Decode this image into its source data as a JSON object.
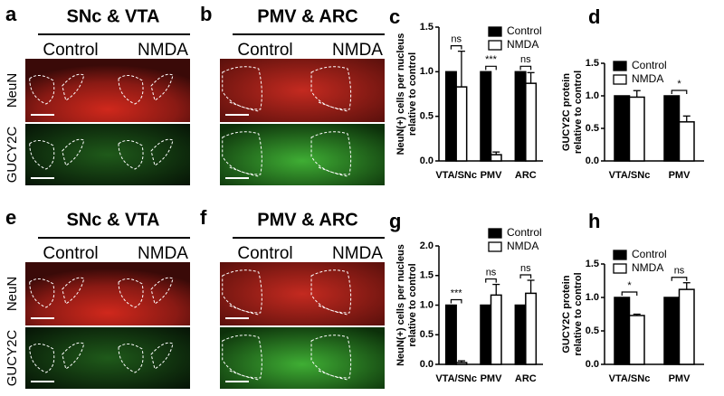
{
  "image_panels": [
    {
      "letter": "a",
      "title": "SNc & VTA",
      "conditions": [
        "Control",
        "NMDA"
      ],
      "rows": [
        "NeuN",
        "GUCY2C"
      ]
    },
    {
      "letter": "b",
      "title": "PMV & ARC",
      "conditions": [
        "Control",
        "NMDA"
      ]
    },
    {
      "letter": "e",
      "title": "SNc & VTA",
      "conditions": [
        "Control",
        "NMDA"
      ],
      "rows": [
        "NeuN",
        "GUCY2C"
      ]
    },
    {
      "letter": "f",
      "title": "PMV & ARC",
      "conditions": [
        "Control",
        "NMDA"
      ]
    }
  ],
  "chart_data": [
    {
      "type": "bar",
      "letter": "c",
      "ylabel": [
        "NeuN(+) cells per nucleus",
        "relative to control"
      ],
      "categories": [
        "VTA/SNc",
        "PMV",
        "ARC"
      ],
      "series": [
        {
          "name": "Control",
          "color": "#000000",
          "values": [
            1,
            1,
            1
          ]
        },
        {
          "name": "NMDA",
          "color": "#ffffff",
          "values": [
            0.83,
            0.07,
            0.87
          ],
          "errors": [
            0.4,
            0.03,
            0.12
          ]
        }
      ],
      "significance": [
        "ns",
        "***",
        "ns"
      ],
      "ylim": [
        0,
        1.5
      ],
      "yticks": [
        {
          "value": 0,
          "label": "0.0"
        },
        0.5,
        {
          "value": 1,
          "label": "1.0"
        },
        1.5
      ]
    },
    {
      "type": "bar",
      "letter": "d",
      "ylabel": [
        "GUCY2C protein",
        "relative to control"
      ],
      "categories": [
        "VTA/SNc",
        "PMV"
      ],
      "series": [
        {
          "name": "Control",
          "color": "#000000",
          "values": [
            1,
            1
          ]
        },
        {
          "name": "NMDA",
          "color": "#ffffff",
          "values": [
            0.98,
            0.6
          ],
          "errors": [
            0.1,
            0.09
          ]
        }
      ],
      "significance": [
        null,
        "*"
      ],
      "ylim": [
        0,
        1.5
      ],
      "yticks": [
        {
          "value": 0,
          "label": "0.0"
        },
        0.5,
        {
          "value": 1,
          "label": "1.0"
        },
        1.5
      ]
    },
    {
      "type": "bar",
      "letter": "g",
      "ylabel": [
        "NeuN(+) cells per nucleus",
        "relative to control"
      ],
      "categories": [
        "VTA/SNc",
        "PMV",
        "ARC"
      ],
      "series": [
        {
          "name": "Control",
          "color": "#000000",
          "values": [
            1,
            1,
            1
          ]
        },
        {
          "name": "NMDA",
          "color": "#ffffff",
          "values": [
            0.03,
            1.17,
            1.2
          ],
          "errors": [
            0.03,
            0.18,
            0.22
          ]
        }
      ],
      "significance": [
        "***",
        "ns",
        "ns"
      ],
      "ylim": [
        0,
        2
      ],
      "yticks": [
        {
          "value": 0,
          "label": "0.0"
        },
        0.5,
        {
          "value": 1,
          "label": "1.0"
        },
        1.5,
        {
          "value": 2,
          "label": "2.0"
        }
      ]
    },
    {
      "type": "bar",
      "letter": "h",
      "ylabel": [
        "GUCY2C protein",
        "relative to control"
      ],
      "categories": [
        "VTA/SNc",
        "PMV"
      ],
      "series": [
        {
          "name": "Control",
          "color": "#000000",
          "values": [
            1,
            1
          ]
        },
        {
          "name": "NMDA",
          "color": "#ffffff",
          "values": [
            0.73,
            1.12
          ],
          "errors": [
            0.02,
            0.1
          ]
        }
      ],
      "significance": [
        "*",
        "ns"
      ],
      "ylim": [
        0,
        1.5
      ],
      "yticks": [
        {
          "value": 0,
          "label": "0.0"
        },
        0.5,
        {
          "value": 1,
          "label": "1.0"
        },
        1.5
      ]
    }
  ]
}
